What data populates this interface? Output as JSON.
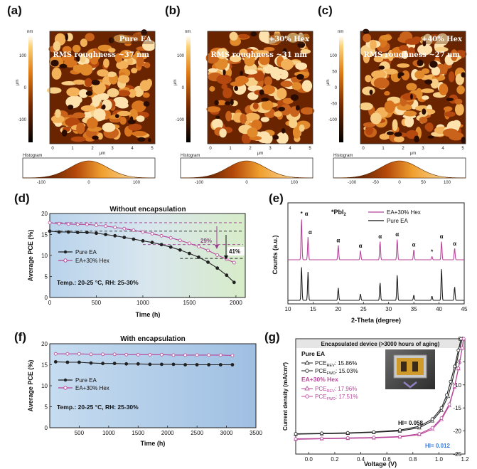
{
  "panels": {
    "a": {
      "label": "(a)",
      "sample": "Pure EA",
      "rms": "RMS roughness ~37 nm",
      "scale_unit": "nm",
      "scale_axis": "μm",
      "scale_ticks": [
        "100",
        "0",
        "-100"
      ],
      "x_ticks": [
        "0",
        "1",
        "2",
        "3",
        "4",
        "5"
      ],
      "x_label": "μm",
      "histogram": "Histogram",
      "hist_ticks": [
        "-100",
        "0",
        "100"
      ]
    },
    "b": {
      "label": "(b)",
      "sample": "+30% Hex",
      "rms": "RMS roughness ~31 nm",
      "scale_unit": "nm",
      "scale_axis": "μm",
      "scale_ticks": [
        "100",
        "0",
        "-100"
      ],
      "x_ticks": [
        "0",
        "1",
        "2",
        "3",
        "4",
        "5"
      ],
      "x_label": "μm",
      "histogram": "Histogram",
      "hist_ticks": [
        "-100",
        "0",
        "100"
      ]
    },
    "c": {
      "label": "(c)",
      "sample": "+40% Hex",
      "rms": "RMS roughness ~27 nm",
      "scale_unit": "nm",
      "scale_axis": "μm",
      "scale_ticks": [
        "100",
        "50",
        "0",
        "-50",
        "-100"
      ],
      "x_ticks": [
        "0",
        "1",
        "2",
        "3",
        "4",
        "5"
      ],
      "x_label": "μm",
      "histogram": "Histogram",
      "hist_ticks": [
        "-100",
        "-50",
        "0",
        "50",
        "100"
      ]
    },
    "d": {
      "label": "(d)",
      "annot_29": "29%",
      "annot_41": "41%",
      "conditions": "Temp.: 20-25 °C, RH: 25-30%"
    },
    "e": {
      "label": "(e)",
      "pbi2_legend": "*PbI",
      "pbi2_sub": "2",
      "alpha": "α",
      "star": "*"
    },
    "f": {
      "label": "(f)",
      "conditions": "Temp.: 20-25 °C, RH: 25-30%"
    },
    "g": {
      "label": "(g)",
      "banner": "Encapsulated device (>3000 hours of aging)",
      "pure_ea": "Pure EA",
      "pure_rev": "PCE",
      "pure_rev_sub": "REV",
      "pure_rev_val": ": 15.86%",
      "pure_fwd": "PCE",
      "pure_fwd_sub": "FWD",
      "pure_fwd_val": ": 15.03%",
      "hex": "EA+30% Hex",
      "hex_rev": "PCE",
      "hex_rev_sub": "REV",
      "hex_rev_val": ": 17.96%",
      "hex_fwd": "PCE",
      "hex_fwd_sub": "FWD",
      "hex_fwd_val": ": 17.51%",
      "hi_pure": "HI= 0.058",
      "hi_hex": "HI= 0.012"
    }
  },
  "colors": {
    "pure": "#222222",
    "hex": "#b8469a",
    "annot": "#9a3f8c"
  },
  "chart_data": [
    {
      "id": "d",
      "type": "line",
      "title": "Without encapsulation",
      "xlabel": "Time (h)",
      "ylabel": "Average PCE (%)",
      "xlim": [
        0,
        2100
      ],
      "ylim": [
        0,
        20
      ],
      "x_ticks": [
        0,
        500,
        1000,
        1500,
        2000
      ],
      "y_ticks": [
        0,
        5,
        10,
        15,
        20
      ],
      "legend_position": "left",
      "series": [
        {
          "name": "Pure EA",
          "x": [
            0,
            100,
            200,
            300,
            400,
            500,
            600,
            700,
            800,
            900,
            1000,
            1100,
            1200,
            1300,
            1400,
            1500,
            1600,
            1700,
            1800,
            1900,
            1980
          ],
          "y": [
            15.8,
            15.6,
            15.6,
            15.5,
            15.5,
            15.3,
            15.0,
            14.7,
            14.3,
            13.9,
            13.5,
            13.1,
            12.6,
            12.0,
            11.3,
            10.5,
            9.6,
            8.4,
            7.0,
            5.3,
            3.6
          ]
        },
        {
          "name": "EA+30% Hex",
          "x": [
            0,
            100,
            200,
            300,
            400,
            500,
            600,
            700,
            800,
            900,
            1000,
            1100,
            1200,
            1300,
            1400,
            1500,
            1600,
            1700,
            1800,
            1900,
            1980
          ],
          "y": [
            17.8,
            17.6,
            17.5,
            17.4,
            17.4,
            17.2,
            17.0,
            16.7,
            16.4,
            16.0,
            15.6,
            15.2,
            14.7,
            14.2,
            13.6,
            12.9,
            12.1,
            11.2,
            10.1,
            9.1,
            8.3
          ]
        }
      ]
    },
    {
      "id": "e",
      "type": "line",
      "xlabel": "2-Theta (degree)",
      "ylabel": "Counts (a.u.)",
      "xlim": [
        10,
        45
      ],
      "x_ticks": [
        10,
        15,
        20,
        25,
        30,
        35,
        40,
        45
      ],
      "legend_position": "top-right",
      "series": [
        {
          "name": "EA+30% Hex",
          "peaks": [
            [
              12.7,
              1.0
            ],
            [
              14.0,
              0.55
            ],
            [
              20.0,
              0.35
            ],
            [
              24.4,
              0.22
            ],
            [
              28.3,
              0.45
            ],
            [
              31.7,
              0.5
            ],
            [
              35.0,
              0.25
            ],
            [
              38.6,
              0.08
            ],
            [
              40.5,
              0.45
            ],
            [
              43.1,
              0.28
            ]
          ]
        },
        {
          "name": "Pure EA",
          "peaks": [
            [
              12.7,
              0.95
            ],
            [
              14.0,
              0.8
            ],
            [
              20.0,
              0.35
            ],
            [
              24.4,
              0.18
            ],
            [
              28.3,
              0.5
            ],
            [
              31.7,
              0.72
            ],
            [
              35.0,
              0.15
            ],
            [
              38.6,
              0.12
            ],
            [
              40.5,
              0.9
            ],
            [
              43.1,
              0.38
            ]
          ]
        }
      ]
    },
    {
      "id": "f",
      "type": "line",
      "title": "With encapsulation",
      "xlabel": "Time (h)",
      "ylabel": "Average PCE (%)",
      "xlim": [
        0,
        3500
      ],
      "ylim": [
        0,
        20
      ],
      "x_ticks": [
        500,
        1000,
        1500,
        2000,
        2500,
        3000,
        3500
      ],
      "y_ticks": [
        0,
        5,
        10,
        15,
        20
      ],
      "legend_position": "left",
      "series": [
        {
          "name": "Pure EA",
          "x": [
            100,
            300,
            500,
            700,
            900,
            1100,
            1300,
            1500,
            1700,
            1900,
            2100,
            2300,
            2500,
            2700,
            2900,
            3100
          ],
          "y": [
            15.7,
            15.6,
            15.6,
            15.4,
            15.3,
            15.3,
            15.2,
            15.2,
            15.1,
            15.1,
            15.1,
            15.0,
            15.0,
            15.0,
            15.0,
            15.0
          ]
        },
        {
          "name": "EA+30% Hex",
          "x": [
            100,
            300,
            500,
            700,
            900,
            1100,
            1300,
            1500,
            1700,
            1900,
            2100,
            2300,
            2500,
            2700,
            2900,
            3100
          ],
          "y": [
            17.6,
            17.6,
            17.6,
            17.5,
            17.5,
            17.5,
            17.4,
            17.4,
            17.4,
            17.4,
            17.3,
            17.3,
            17.3,
            17.3,
            17.3,
            17.2
          ]
        }
      ]
    },
    {
      "id": "g",
      "type": "line",
      "xlabel": "Voltage (V)",
      "ylabel": "Current density (mA/cm²)",
      "xlim": [
        -0.1,
        1.2
      ],
      "ylim": [
        -25,
        0
      ],
      "x_ticks": [
        0.0,
        0.2,
        0.4,
        0.6,
        0.8,
        1.0,
        1.2
      ],
      "y_ticks": [
        0,
        -5,
        -10,
        -15,
        -20,
        -25
      ],
      "legend_position": "left",
      "series": [
        {
          "name": "Pure EA PCE REV",
          "x": [
            -0.1,
            0.1,
            0.3,
            0.5,
            0.7,
            0.85,
            0.95,
            1.02,
            1.07,
            1.1,
            1.13,
            1.16,
            1.18
          ],
          "y": [
            -20.7,
            -20.6,
            -20.5,
            -20.3,
            -20.0,
            -19.3,
            -17.8,
            -15.5,
            -12.5,
            -9.5,
            -6.0,
            -2.0,
            0.0
          ]
        },
        {
          "name": "Pure EA PCE FWD",
          "x": [
            -0.1,
            0.1,
            0.3,
            0.5,
            0.7,
            0.85,
            0.95,
            1.02,
            1.06,
            1.09,
            1.12,
            1.15,
            1.17
          ],
          "y": [
            -20.6,
            -20.5,
            -20.4,
            -20.2,
            -19.8,
            -19.0,
            -17.4,
            -15.0,
            -12.2,
            -9.3,
            -6.0,
            -2.5,
            0.0
          ]
        },
        {
          "name": "EA+30% Hex PCE REV",
          "x": [
            -0.1,
            0.1,
            0.3,
            0.5,
            0.7,
            0.85,
            0.95,
            1.02,
            1.08,
            1.12,
            1.15,
            1.18,
            1.19
          ],
          "y": [
            -21.8,
            -21.7,
            -21.6,
            -21.5,
            -21.3,
            -20.8,
            -19.6,
            -17.5,
            -14.5,
            -10.5,
            -6.5,
            -2.0,
            0.0
          ]
        },
        {
          "name": "EA+30% Hex PCE FWD",
          "x": [
            -0.1,
            0.1,
            0.3,
            0.5,
            0.7,
            0.85,
            0.95,
            1.02,
            1.08,
            1.12,
            1.15,
            1.18,
            1.19
          ],
          "y": [
            -21.7,
            -21.6,
            -21.5,
            -21.4,
            -21.2,
            -20.6,
            -19.3,
            -17.2,
            -14.2,
            -10.3,
            -6.4,
            -2.0,
            0.0
          ]
        }
      ]
    }
  ]
}
